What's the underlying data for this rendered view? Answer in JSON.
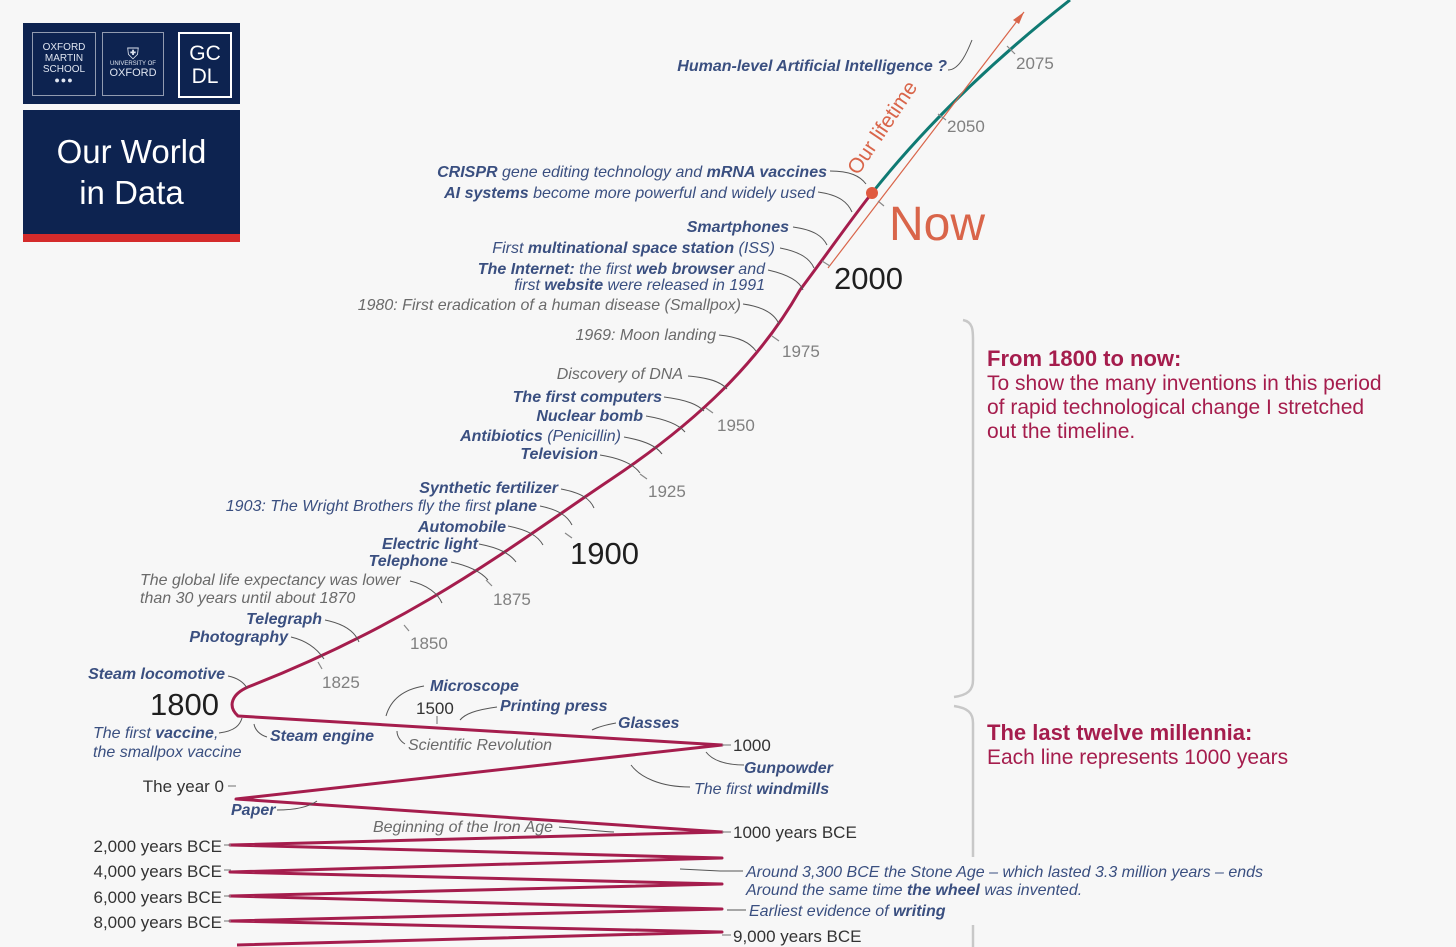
{
  "logo": {
    "oxford_martin_lines": [
      "OXFORD",
      "MARTIN",
      "SCHOOL"
    ],
    "oxford_university_small": "UNIVERSITY OF",
    "oxford_university": "OXFORD",
    "gcdl_top": "GC",
    "gcdl_bottom": "DL",
    "title_line1": "Our World",
    "title_line2": "in Data"
  },
  "colors": {
    "timeline": "#a51d4d",
    "future": "#0f7a73",
    "lifetime": "#d9654a",
    "now_dot": "#e05a40",
    "event_blue": "#3a4f80",
    "accent_red": "#d42b2b"
  },
  "labels": {
    "now": "Now",
    "our_lifetime": "Our lifetime",
    "big_years": {
      "y2000": "2000",
      "y1900": "1900",
      "y1800": "1800",
      "y1500": "1500"
    },
    "small_years": {
      "y2075": "2075",
      "y2050": "2050",
      "y1975": "1975",
      "y1950": "1950",
      "y1925": "1925",
      "y1875": "1875",
      "y1850": "1850",
      "y1825": "1825"
    },
    "millennia": {
      "y1000": "1000",
      "year0": "The year 0",
      "bce1000": "1000 years BCE",
      "bce2000": "2,000 years BCE",
      "bce4000": "4,000 years BCE",
      "bce6000": "6,000 years BCE",
      "bce8000": "8,000 years BCE",
      "bce9000": "9,000 years BCE"
    }
  },
  "events": {
    "ai_human_level": "Human-level Artificial Intelligence ?",
    "crispr_bold": "CRISPR",
    "crispr_mid": " gene editing technology and ",
    "mrna_bold": "mRNA vaccines",
    "ai_systems_bold": "AI systems",
    "ai_systems_rest": " become more powerful and widely used",
    "smartphones": "Smartphones",
    "iss_pre": "First ",
    "iss_bold": "multinational space station",
    "iss_post": " (ISS)",
    "internet_bold": "The Internet:",
    "internet_mid": " the first ",
    "web_browser_bold": "web browser",
    "internet_and": " and",
    "first_pre": "first ",
    "website_bold": "website",
    "website_post": " were released in 1991",
    "smallpox": "1980: First eradication of a human disease (Smallpox)",
    "moon": "1969: Moon landing",
    "dna": "Discovery of DNA",
    "computers": "The first computers",
    "nuclear": "Nuclear bomb",
    "antibiotics_bold": "Antibiotics",
    "antibiotics_rest": " (Penicillin)",
    "television": "Television",
    "fertilizer": "Synthetic fertilizer",
    "wright_pre": "1903: The Wright Brothers fly the first ",
    "wright_bold": "plane",
    "automobile": "Automobile",
    "electric": "Electric light",
    "telephone": "Telephone",
    "life_exp_1": "The global life expectancy was lower",
    "life_exp_2": "than 30 years until about 1870",
    "telegraph": "Telegraph",
    "photography": "Photography",
    "steam_loco": "Steam locomotive",
    "vaccine_pre": "The first ",
    "vaccine_bold": "vaccine",
    "vaccine_post": ",",
    "vaccine_line2": "the smallpox vaccine",
    "steam_engine": "Steam engine",
    "microscope": "Microscope",
    "printing": "Printing press",
    "glasses": "Glasses",
    "sci_rev": "Scientific Revolution",
    "gunpowder": "Gunpowder",
    "windmills_pre": "The first ",
    "windmills_bold": "windmills",
    "paper": "Paper",
    "iron_age": "Beginning of the Iron Age",
    "stone_age": "Around 3,300 BCE the Stone Age – which lasted 3.3 million years – ends",
    "wheel_pre": "Around the same time ",
    "wheel_bold": "the wheel",
    "wheel_post": " was invented.",
    "writing_pre": "Earliest evidence of ",
    "writing_bold": "writing"
  },
  "sidebar": {
    "period1_title": "From 1800 to now:",
    "period1_lines": [
      "To show the many inventions in this period",
      "of rapid technological change I stretched",
      "out the timeline."
    ],
    "period2_title": "The last twelve millennia:",
    "period2_line": "Each line represents 1000 years"
  }
}
